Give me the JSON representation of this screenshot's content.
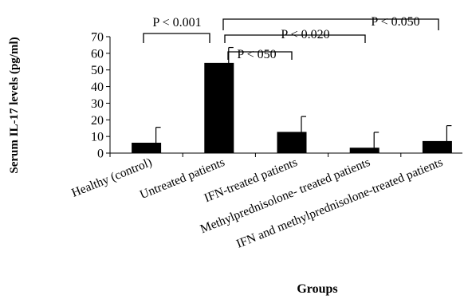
{
  "chart_data": {
    "type": "bar",
    "categories": [
      "Healthy (control)",
      "Untreated patients",
      "IFN-treated patients",
      "Methylprednisolone- treated patients",
      "IFN and methylprednisolone-treated patients"
    ],
    "values": [
      6,
      54,
      12.5,
      3,
      7
    ],
    "errors": [
      9.5,
      9.5,
      9.5,
      9.5,
      9.5
    ],
    "xlabel": "Groups",
    "ylabel": "Serum IL-17 levels (pg/ml)",
    "ylim": [
      0,
      70
    ],
    "yticks": [
      0,
      10,
      20,
      30,
      40,
      50,
      60,
      70
    ],
    "bar_color": "#000000",
    "grid": false,
    "legend": "none",
    "annotations": [
      {
        "label": "P < 0.001",
        "from": 0,
        "to": 1
      },
      {
        "label": "P < 050",
        "from": 1,
        "to": 2
      },
      {
        "label": "P < 0.020",
        "from": 1,
        "to": 3
      },
      {
        "label": "P < 0.050",
        "from": 1,
        "to": 4
      }
    ]
  }
}
